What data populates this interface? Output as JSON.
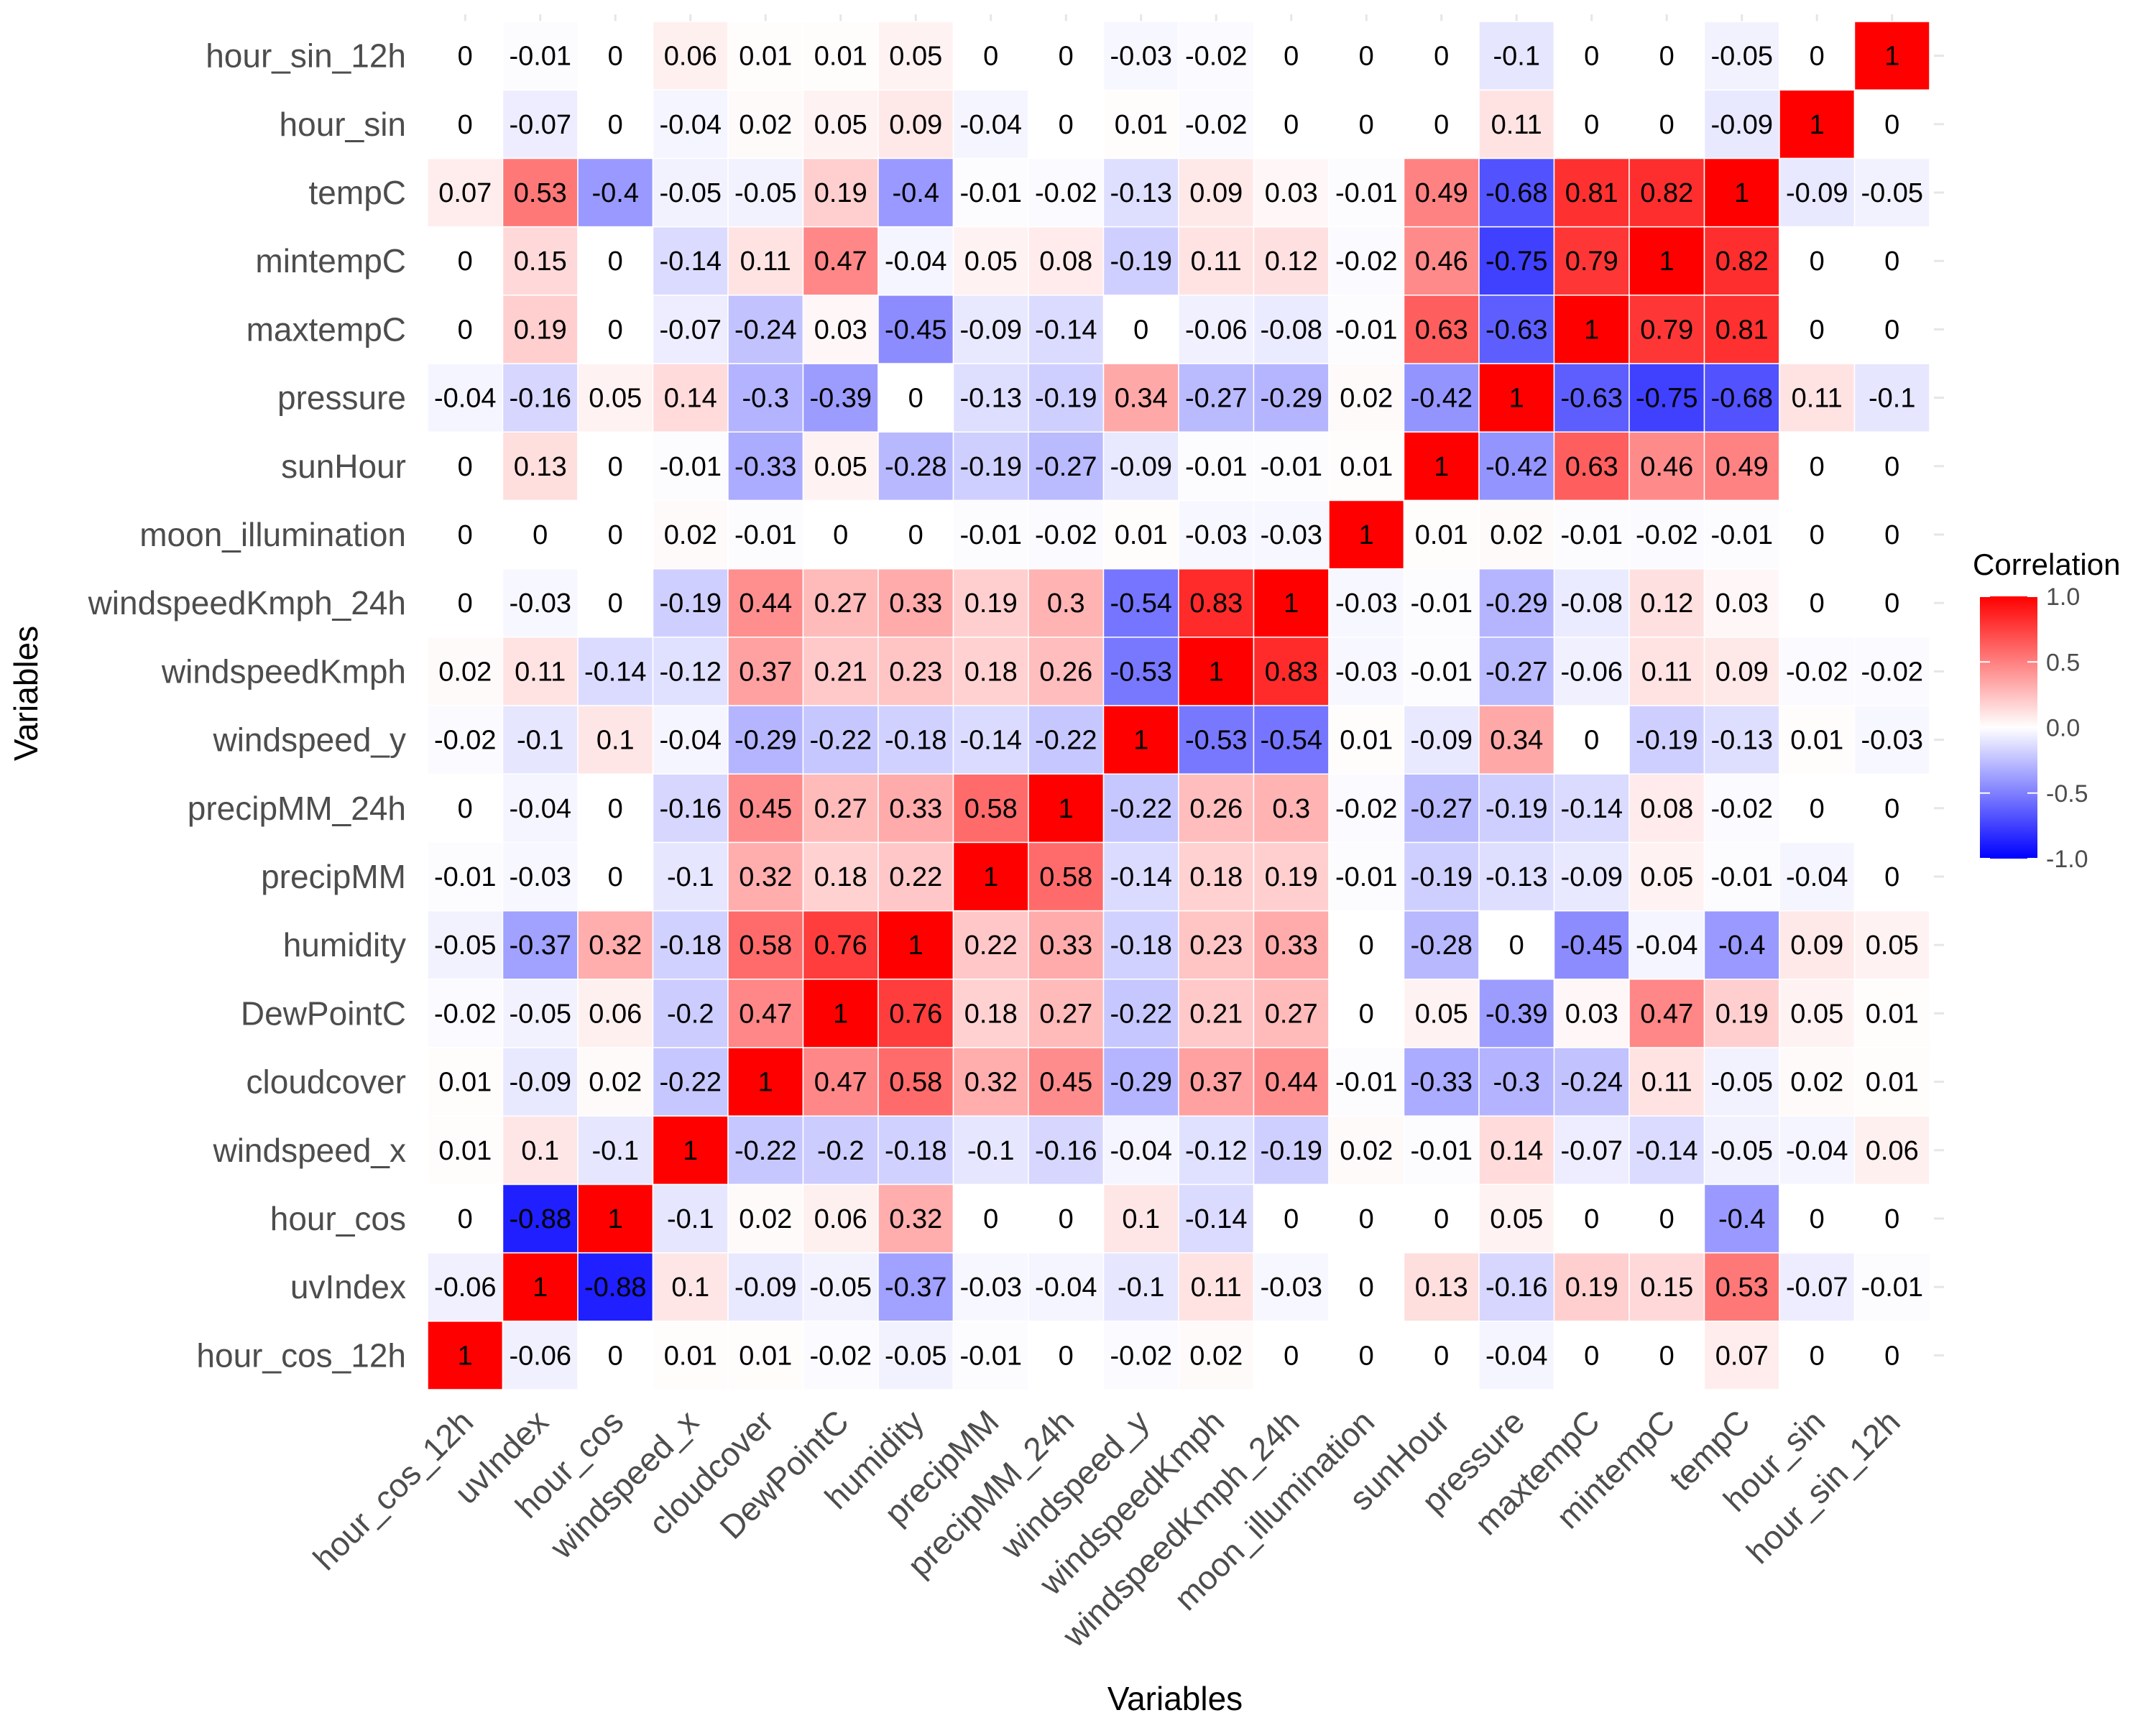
{
  "chart_data": {
    "type": "heatmap",
    "title": "",
    "xlabel": "Variables",
    "ylabel": "Variables",
    "variables": [
      "hour_cos_12h",
      "uvIndex",
      "hour_cos",
      "windspeed_x",
      "cloudcover",
      "DewPointC",
      "humidity",
      "precipMM",
      "precipMM_24h",
      "windspeed_y",
      "windspeedKmph",
      "windspeedKmph_24h",
      "moon_illumination",
      "sunHour",
      "pressure",
      "maxtempC",
      "mintempC",
      "tempC",
      "hour_sin",
      "hour_sin_12h"
    ],
    "matrix": [
      [
        1,
        -0.06,
        0,
        0.01,
        0.01,
        -0.02,
        -0.05,
        -0.01,
        0,
        -0.02,
        0.02,
        0,
        0,
        0,
        -0.04,
        0,
        0,
        0.07,
        0,
        0
      ],
      [
        -0.06,
        1,
        -0.88,
        0.1,
        -0.09,
        -0.05,
        -0.37,
        -0.03,
        -0.04,
        -0.1,
        0.11,
        -0.03,
        0,
        0.13,
        -0.16,
        0.19,
        0.15,
        0.53,
        -0.07,
        -0.01
      ],
      [
        0,
        -0.88,
        1,
        -0.1,
        0.02,
        0.06,
        0.32,
        0,
        0,
        0.1,
        -0.14,
        0,
        0,
        0,
        0.05,
        0,
        0,
        -0.4,
        0,
        0
      ],
      [
        0.01,
        0.1,
        -0.1,
        1,
        -0.22,
        -0.2,
        -0.18,
        -0.1,
        -0.16,
        -0.04,
        -0.12,
        -0.19,
        0.02,
        -0.01,
        0.14,
        -0.07,
        -0.14,
        -0.05,
        -0.04,
        0.06
      ],
      [
        0.01,
        -0.09,
        0.02,
        -0.22,
        1,
        0.47,
        0.58,
        0.32,
        0.45,
        -0.29,
        0.37,
        0.44,
        -0.01,
        -0.33,
        -0.3,
        -0.24,
        0.11,
        -0.05,
        0.02,
        0.01
      ],
      [
        -0.02,
        -0.05,
        0.06,
        -0.2,
        0.47,
        1,
        0.76,
        0.18,
        0.27,
        -0.22,
        0.21,
        0.27,
        0,
        0.05,
        -0.39,
        0.03,
        0.47,
        0.19,
        0.05,
        0.01
      ],
      [
        -0.05,
        -0.37,
        0.32,
        -0.18,
        0.58,
        0.76,
        1,
        0.22,
        0.33,
        -0.18,
        0.23,
        0.33,
        0,
        -0.28,
        0,
        -0.45,
        -0.04,
        -0.4,
        0.09,
        0.05
      ],
      [
        -0.01,
        -0.03,
        0,
        -0.1,
        0.32,
        0.18,
        0.22,
        1,
        0.58,
        -0.14,
        0.18,
        0.19,
        -0.01,
        -0.19,
        -0.13,
        -0.09,
        0.05,
        -0.01,
        -0.04,
        0
      ],
      [
        0,
        -0.04,
        0,
        -0.16,
        0.45,
        0.27,
        0.33,
        0.58,
        1,
        -0.22,
        0.26,
        0.3,
        -0.02,
        -0.27,
        -0.19,
        -0.14,
        0.08,
        -0.02,
        0,
        0
      ],
      [
        -0.02,
        -0.1,
        0.1,
        -0.04,
        -0.29,
        -0.22,
        -0.18,
        -0.14,
        -0.22,
        1,
        -0.53,
        -0.54,
        0.01,
        -0.09,
        0.34,
        0,
        -0.19,
        -0.13,
        0.01,
        -0.03
      ],
      [
        0.02,
        0.11,
        -0.14,
        -0.12,
        0.37,
        0.21,
        0.23,
        0.18,
        0.26,
        -0.53,
        1,
        0.83,
        -0.03,
        -0.01,
        -0.27,
        -0.06,
        0.11,
        0.09,
        -0.02,
        -0.02
      ],
      [
        0,
        -0.03,
        0,
        -0.19,
        0.44,
        0.27,
        0.33,
        0.19,
        0.3,
        -0.54,
        0.83,
        1,
        -0.03,
        -0.01,
        -0.29,
        -0.08,
        0.12,
        0.03,
        0,
        0
      ],
      [
        0,
        0,
        0,
        0.02,
        -0.01,
        0,
        0,
        -0.01,
        -0.02,
        0.01,
        -0.03,
        -0.03,
        1,
        0.01,
        0.02,
        -0.01,
        -0.02,
        -0.01,
        0,
        0
      ],
      [
        0,
        0.13,
        0,
        -0.01,
        -0.33,
        0.05,
        -0.28,
        -0.19,
        -0.27,
        -0.09,
        -0.01,
        -0.01,
        0.01,
        1,
        -0.42,
        0.63,
        0.46,
        0.49,
        0,
        0
      ],
      [
        -0.04,
        -0.16,
        0.05,
        0.14,
        -0.3,
        -0.39,
        0,
        -0.13,
        -0.19,
        0.34,
        -0.27,
        -0.29,
        0.02,
        -0.42,
        1,
        -0.63,
        -0.75,
        -0.68,
        0.11,
        -0.1
      ],
      [
        0,
        0.19,
        0,
        -0.07,
        -0.24,
        0.03,
        -0.45,
        -0.09,
        -0.14,
        0,
        -0.06,
        -0.08,
        -0.01,
        0.63,
        -0.63,
        1,
        0.79,
        0.81,
        0,
        0
      ],
      [
        0,
        0.15,
        0,
        -0.14,
        0.11,
        0.47,
        -0.04,
        0.05,
        0.08,
        -0.19,
        0.11,
        0.12,
        -0.02,
        0.46,
        -0.75,
        0.79,
        1,
        0.82,
        0,
        0
      ],
      [
        0.07,
        0.53,
        -0.4,
        -0.05,
        -0.05,
        0.19,
        -0.4,
        -0.01,
        -0.02,
        -0.13,
        0.09,
        0.03,
        -0.01,
        0.49,
        -0.68,
        0.81,
        0.82,
        1,
        -0.09,
        -0.05
      ],
      [
        0,
        -0.07,
        0,
        -0.04,
        0.02,
        0.05,
        0.09,
        -0.04,
        0,
        0.01,
        -0.02,
        0,
        0,
        0,
        0.11,
        0,
        0,
        -0.09,
        1,
        0
      ],
      [
        0,
        -0.01,
        0,
        0.06,
        0.01,
        0.01,
        0.05,
        0,
        0,
        -0.03,
        -0.02,
        0,
        0,
        0,
        -0.1,
        0,
        0,
        -0.05,
        0,
        1
      ]
    ],
    "value_range": [
      -1,
      1
    ],
    "legend": {
      "title": "Correlation",
      "ticks": [
        "1.0",
        "0.5",
        "0.0",
        "-0.5",
        "-1.0"
      ],
      "placement": "right"
    },
    "colors": {
      "low": "#0000ff",
      "mid": "#ffffff",
      "high": "#ff0000"
    },
    "grid": false
  }
}
